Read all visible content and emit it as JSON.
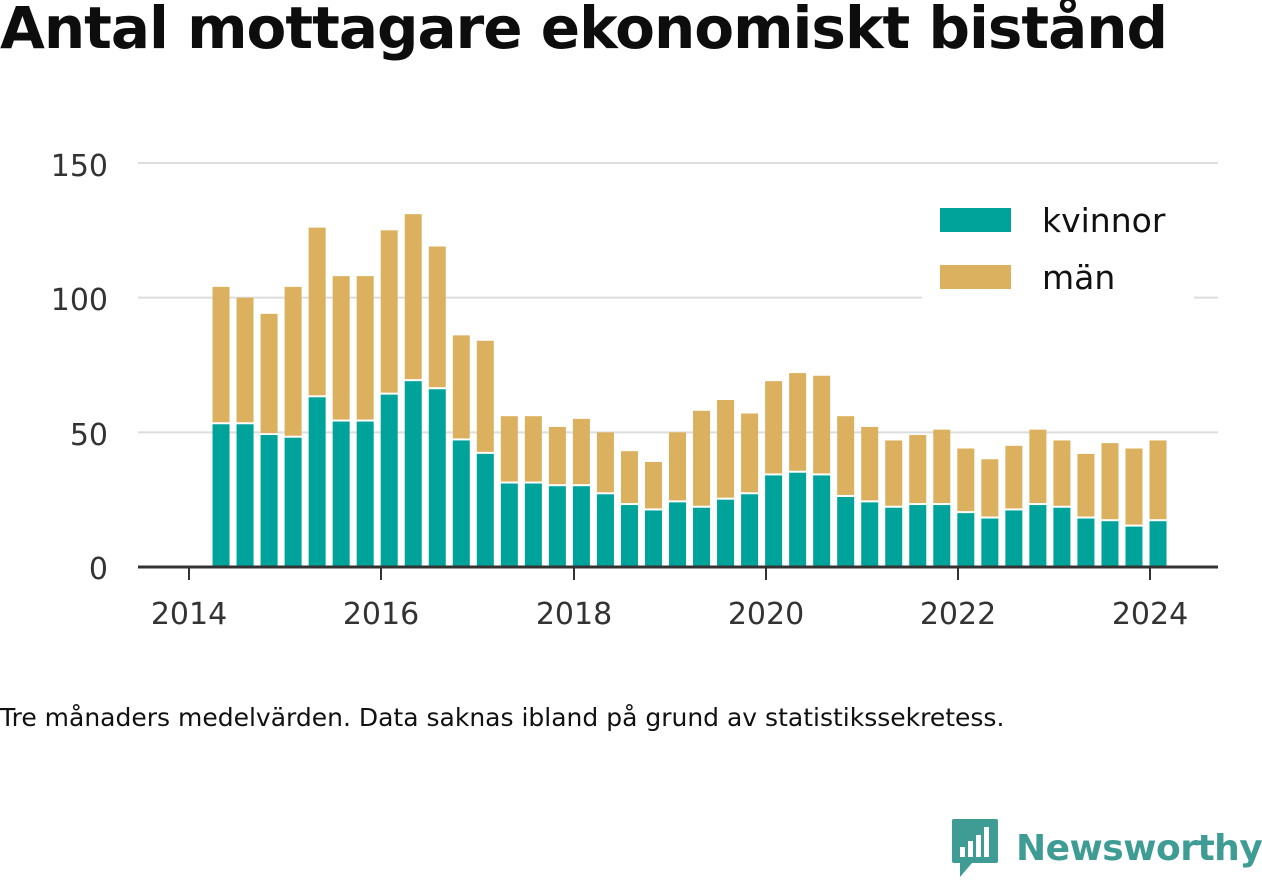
{
  "title": "Antal mottagare ekonomiskt bistånd",
  "note": "Tre månaders medelvärden. Data saknas ibland på grund av statistikssekretess.",
  "brand": "Newsworthy",
  "colors": {
    "kvinnor": "#00a39a",
    "man": "#dbb15f",
    "grid": "#dddddd",
    "axis": "#333333",
    "brand": "#3f9c94"
  },
  "chart_data": {
    "type": "bar",
    "stacked": true,
    "x_axis": {
      "type": "time",
      "ticks": [
        "2014",
        "2016",
        "2018",
        "2020",
        "2022",
        "2024"
      ]
    },
    "y_axis": {
      "ticks": [
        "0",
        "50",
        "100",
        "150"
      ],
      "ylim": [
        0,
        150
      ]
    },
    "legend_position": "top-right",
    "grid": "horizontal",
    "x": [
      "2014-05",
      "2014-08",
      "2014-11",
      "2015-02",
      "2015-05",
      "2015-08",
      "2015-11",
      "2016-02",
      "2016-05",
      "2016-08",
      "2016-11",
      "2017-02",
      "2017-05",
      "2017-08",
      "2017-11",
      "2018-02",
      "2018-05",
      "2018-08",
      "2018-11",
      "2019-02",
      "2019-05",
      "2019-08",
      "2019-11",
      "2020-02",
      "2020-05",
      "2020-08",
      "2020-11",
      "2021-02",
      "2021-05",
      "2021-08",
      "2021-11",
      "2022-02",
      "2022-05",
      "2022-08",
      "2022-11",
      "2023-02",
      "2023-05",
      "2023-08",
      "2023-11",
      "2024-02"
    ],
    "series": [
      {
        "name": "kvinnor",
        "color": "#00a39a",
        "values": [
          53,
          53,
          49,
          48,
          63,
          54,
          54,
          64,
          69,
          66,
          47,
          42,
          31,
          31,
          30,
          30,
          27,
          23,
          21,
          24,
          22,
          25,
          27,
          34,
          35,
          34,
          26,
          24,
          22,
          23,
          23,
          20,
          18,
          21,
          23,
          22,
          18,
          17,
          15,
          17
        ]
      },
      {
        "name": "män",
        "color": "#dbb15f",
        "values": [
          51,
          47,
          45,
          56,
          63,
          54,
          54,
          61,
          62,
          53,
          39,
          42,
          25,
          25,
          22,
          25,
          23,
          20,
          18,
          26,
          36,
          37,
          30,
          35,
          37,
          37,
          30,
          28,
          25,
          26,
          28,
          24,
          22,
          24,
          28,
          25,
          24,
          29,
          29,
          30
        ]
      }
    ]
  }
}
